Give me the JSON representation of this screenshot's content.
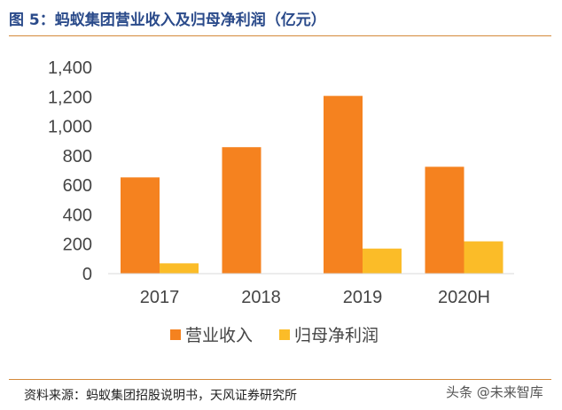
{
  "title": "图 5：蚂蚁集团营业收入及归母净利润（亿元）",
  "source": "资料来源：蚂蚁集团招股说明书，天风证券研究所",
  "watermark": "头条 @未来智库",
  "colors": {
    "revenue": "#f5821f",
    "profit": "#fbbc28",
    "title": "#2a4a8a",
    "rule": "#d4893a"
  },
  "chart_data": {
    "type": "bar",
    "categories": [
      "2017",
      "2018",
      "2019",
      "2020H"
    ],
    "series": [
      {
        "name": "营业收入",
        "values": [
          653,
          858,
          1206,
          725
        ]
      },
      {
        "name": "归母净利润",
        "values": [
          70,
          0,
          170,
          219
        ]
      }
    ],
    "ylim": [
      0,
      1400
    ],
    "yticks": [
      0,
      200,
      400,
      600,
      800,
      1000,
      1200,
      1400
    ],
    "ytick_labels": [
      "0",
      "200",
      "400",
      "600",
      "800",
      "1,000",
      "1,200",
      "1,400"
    ],
    "grid": false,
    "legend": "bottom"
  }
}
